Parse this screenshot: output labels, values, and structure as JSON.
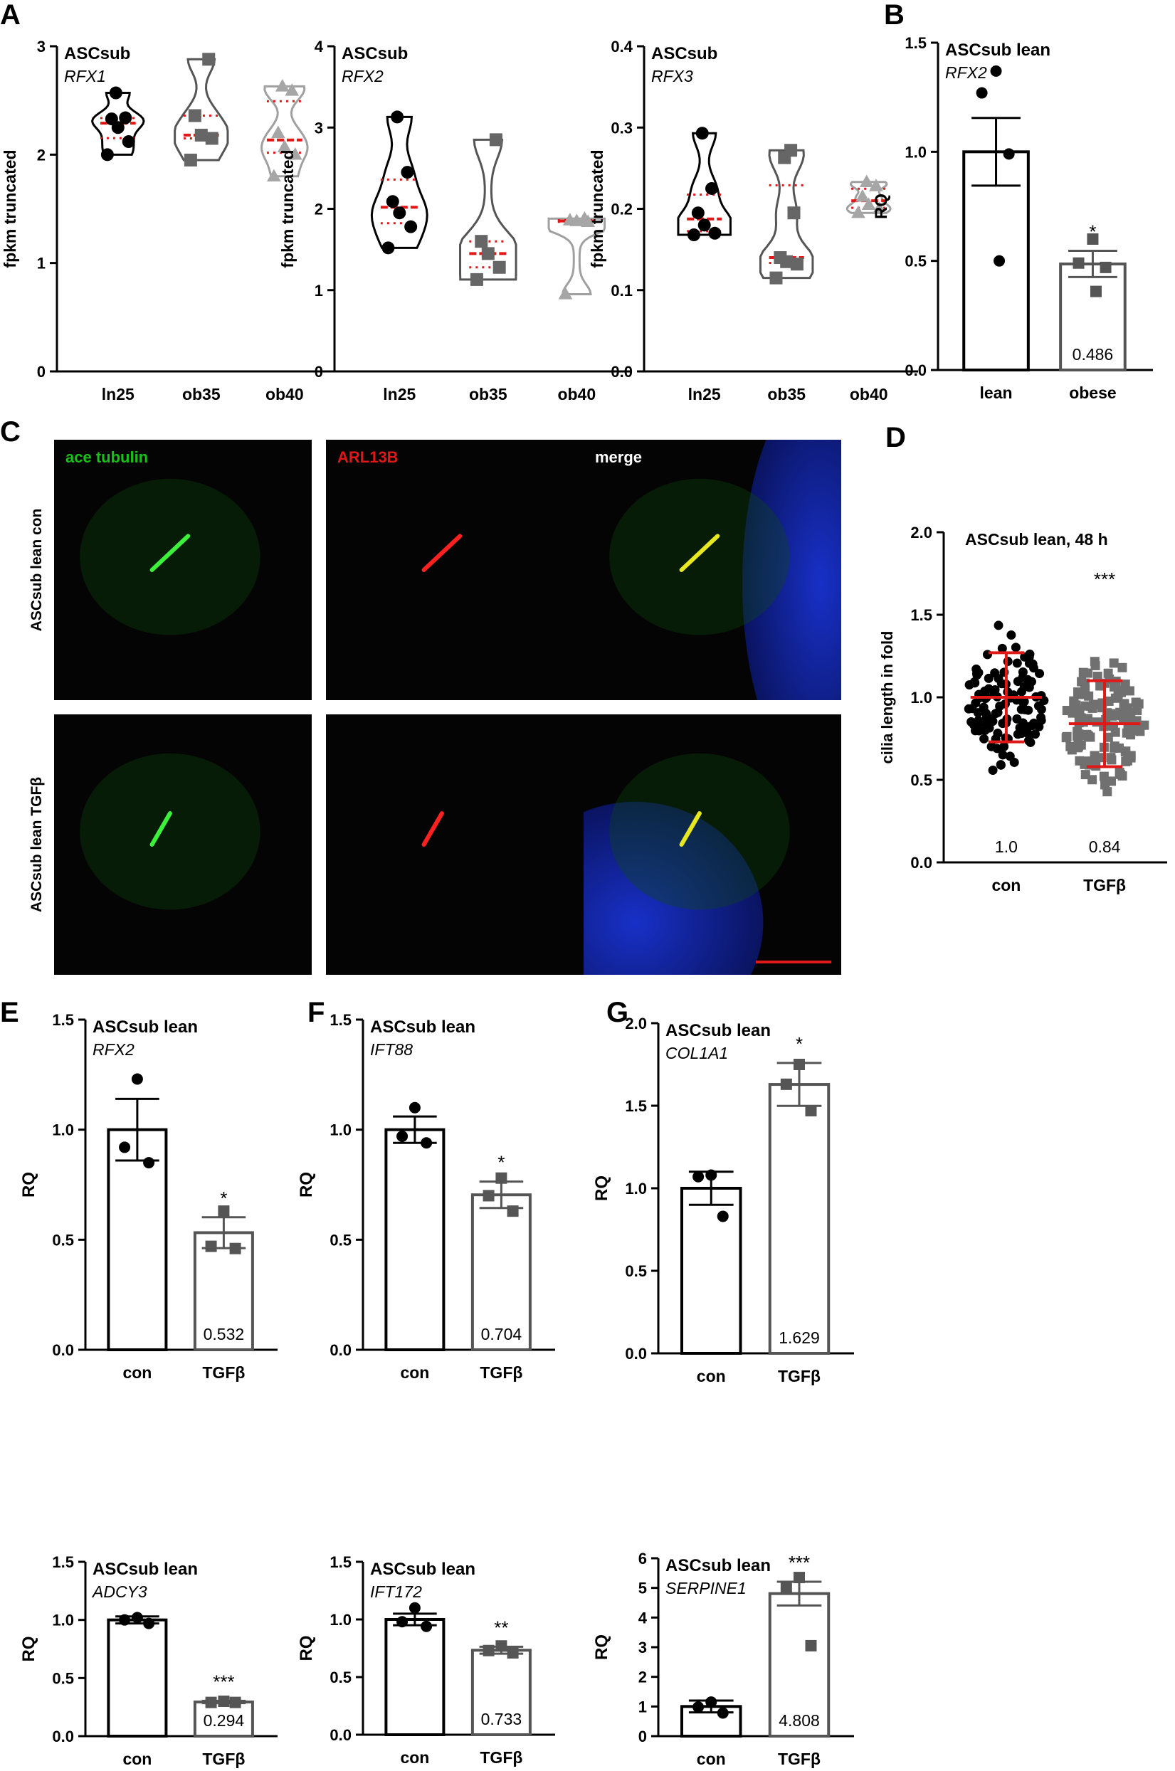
{
  "panel_letters": [
    "A",
    "B",
    "C",
    "D",
    "E",
    "F",
    "G"
  ],
  "microscopy": {
    "channels": [
      "ace tubulin",
      "ARL13B",
      "merge"
    ],
    "channel_colors": [
      "#18c018",
      "#e01818",
      "#ffffff"
    ],
    "rows": [
      "ASCsub lean con",
      "ASCsub lean TGFβ"
    ]
  },
  "chart_data": [
    {
      "id": "A1",
      "type": "violin",
      "panel": "A",
      "title": "ASCsub",
      "subtitle": "RFX1",
      "ylabel": "fpkm truncated",
      "ylim": [
        0,
        3
      ],
      "yticks": [
        "0",
        "1",
        "2",
        "3"
      ],
      "categories": [
        "ln25",
        "ob35",
        "ob40"
      ],
      "series": [
        {
          "shape": "circle",
          "color": "#000000",
          "values": [
            2.57,
            2.34,
            2.33,
            2.25,
            2.12,
            2.0
          ]
        },
        {
          "shape": "square",
          "color": "#666666",
          "values": [
            2.88,
            2.36,
            2.18,
            2.15,
            1.95
          ]
        },
        {
          "shape": "triangle",
          "color": "#a6a6a6",
          "values": [
            2.63,
            2.59,
            2.2,
            2.07,
            2.0,
            1.8
          ]
        }
      ]
    },
    {
      "id": "A2",
      "type": "violin",
      "panel": "A",
      "title": "ASCsub",
      "subtitle": "RFX2",
      "ylabel": "fpkm truncated",
      "ylim": [
        0,
        4
      ],
      "yticks": [
        "0",
        "1",
        "2",
        "3",
        "4"
      ],
      "categories": [
        "ln25",
        "ob35",
        "ob40"
      ],
      "series": [
        {
          "shape": "circle",
          "color": "#000000",
          "values": [
            3.13,
            2.45,
            2.09,
            1.95,
            1.78,
            1.52
          ]
        },
        {
          "shape": "square",
          "color": "#666666",
          "values": [
            2.85,
            1.6,
            1.45,
            1.28,
            1.13
          ]
        },
        {
          "shape": "triangle",
          "color": "#a6a6a6",
          "values": [
            1.88,
            1.86,
            1.85,
            1.84,
            0.95
          ]
        }
      ]
    },
    {
      "id": "A3",
      "type": "violin",
      "panel": "A",
      "title": "ASCsub",
      "subtitle": "RFX3",
      "ylabel": "fpkm truncated",
      "ylim": [
        0,
        0.4
      ],
      "yticks": [
        "0.0",
        "0.1",
        "0.2",
        "0.3",
        "0.4"
      ],
      "categories": [
        "ln25",
        "ob35",
        "ob40"
      ],
      "series": [
        {
          "shape": "circle",
          "color": "#000000",
          "values": [
            0.293,
            0.225,
            0.195,
            0.18,
            0.17,
            0.168
          ]
        },
        {
          "shape": "square",
          "color": "#666666",
          "values": [
            0.272,
            0.263,
            0.195,
            0.14,
            0.135,
            0.132,
            0.115
          ]
        },
        {
          "shape": "triangle",
          "color": "#a6a6a6",
          "values": [
            0.233,
            0.228,
            0.215,
            0.205,
            0.2,
            0.195
          ]
        }
      ]
    },
    {
      "id": "B",
      "type": "bar",
      "panel": "B",
      "title": "ASCsub lean",
      "subtitle": "RFX2",
      "ylabel": "RQ",
      "ylim": [
        0,
        1.5
      ],
      "yticks": [
        "0.0",
        "0.5",
        "1.0",
        "1.5"
      ],
      "categories": [
        "lean",
        "obese"
      ],
      "means": [
        1.0,
        0.486
      ],
      "sem": [
        0.155,
        0.06
      ],
      "points": [
        [
          1.37,
          1.27,
          0.99,
          0.5
        ],
        [
          0.6,
          0.49,
          0.47,
          0.36
        ]
      ],
      "bar_colors": [
        "#000000",
        "#555555"
      ],
      "value_label": "0.486",
      "sig": [
        "",
        "*"
      ]
    },
    {
      "id": "D",
      "type": "scatter",
      "panel": "D",
      "title": "ASCsub lean, 48 h",
      "ylabel": "cilia length in fold",
      "ylim": [
        0,
        2
      ],
      "yticks": [
        "0.0",
        "0.5",
        "1.0",
        "1.5",
        "2.0"
      ],
      "categories": [
        "con",
        "TGFβ"
      ],
      "means": [
        1.0,
        0.84
      ],
      "sd": [
        0.27,
        0.26
      ],
      "point_ranges": [
        [
          0.33,
          1.62
        ],
        [
          0.32,
          1.6
        ]
      ],
      "n_points": [
        120,
        130
      ],
      "point_colors": [
        "#000000",
        "#707070"
      ],
      "value_labels": [
        "1.0",
        "0.84"
      ],
      "sig": [
        "",
        "***"
      ]
    },
    {
      "id": "E1",
      "type": "bar",
      "panel": "E",
      "title": "ASCsub lean",
      "subtitle": "RFX2",
      "ylabel": "RQ",
      "ylim": [
        0,
        1.5
      ],
      "yticks": [
        "0.0",
        "0.5",
        "1.0",
        "1.5"
      ],
      "categories": [
        "con",
        "TGFβ"
      ],
      "means": [
        1.0,
        0.532
      ],
      "sem": [
        0.14,
        0.07
      ],
      "points": [
        [
          1.23,
          0.92,
          0.85
        ],
        [
          0.63,
          0.47,
          0.46
        ]
      ],
      "bar_colors": [
        "#000000",
        "#555555"
      ],
      "value_label": "0.532",
      "sig": [
        "",
        "*"
      ]
    },
    {
      "id": "F1",
      "type": "bar",
      "panel": "F",
      "title": "ASCsub lean",
      "subtitle": "IFT88",
      "ylabel": "RQ",
      "ylim": [
        0,
        1.5
      ],
      "yticks": [
        "0.0",
        "0.5",
        "1.0",
        "1.5"
      ],
      "categories": [
        "con",
        "TGFβ"
      ],
      "means": [
        1.0,
        0.704
      ],
      "sem": [
        0.06,
        0.06
      ],
      "points": [
        [
          1.1,
          0.97,
          0.94
        ],
        [
          0.78,
          0.7,
          0.63
        ]
      ],
      "bar_colors": [
        "#000000",
        "#555555"
      ],
      "value_label": "0.704",
      "sig": [
        "",
        "*"
      ]
    },
    {
      "id": "G1",
      "type": "bar",
      "panel": "G",
      "title": "ASCsub lean",
      "subtitle": "COL1A1",
      "ylabel": "RQ",
      "ylim": [
        0,
        2.0
      ],
      "yticks": [
        "0.0",
        "0.5",
        "1.0",
        "1.5",
        "2.0"
      ],
      "categories": [
        "con",
        "TGFβ"
      ],
      "means": [
        1.0,
        1.629
      ],
      "sem": [
        0.1,
        0.13
      ],
      "points": [
        [
          1.08,
          1.07,
          0.83
        ],
        [
          1.75,
          1.63,
          1.47
        ]
      ],
      "bar_colors": [
        "#000000",
        "#555555"
      ],
      "value_label": "1.629",
      "sig": [
        "",
        "*"
      ]
    },
    {
      "id": "E2",
      "type": "bar",
      "panel": "E",
      "title": "ASCsub lean",
      "subtitle": "ADCY3",
      "ylabel": "RQ",
      "ylim": [
        0,
        1.5
      ],
      "yticks": [
        "0.0",
        "0.5",
        "1.0",
        "1.5"
      ],
      "categories": [
        "con",
        "TGFβ"
      ],
      "means": [
        1.0,
        0.294
      ],
      "sem": [
        0.03,
        0.01
      ],
      "points": [
        [
          1.02,
          1.0,
          0.97
        ],
        [
          0.3,
          0.29,
          0.29
        ]
      ],
      "bar_colors": [
        "#000000",
        "#555555"
      ],
      "value_label": "0.294",
      "sig": [
        "",
        "***"
      ]
    },
    {
      "id": "F2",
      "type": "bar",
      "panel": "F",
      "title": "ASCsub lean",
      "subtitle": "IFT172",
      "ylabel": "RQ",
      "ylim": [
        0,
        1.5
      ],
      "yticks": [
        "0.0",
        "0.5",
        "1.0",
        "1.5"
      ],
      "categories": [
        "con",
        "TGFβ"
      ],
      "means": [
        1.0,
        0.733
      ],
      "sem": [
        0.05,
        0.03
      ],
      "points": [
        [
          1.1,
          0.98,
          0.94
        ],
        [
          0.77,
          0.73,
          0.71
        ]
      ],
      "bar_colors": [
        "#000000",
        "#555555"
      ],
      "value_label": "0.733",
      "sig": [
        "",
        "**"
      ]
    },
    {
      "id": "G2",
      "type": "bar",
      "panel": "G",
      "title": "ASCsub lean",
      "subtitle": "SERPINE1",
      "ylabel": "RQ",
      "ylim": [
        0,
        6
      ],
      "yticks": [
        "0",
        "1",
        "2",
        "3",
        "4",
        "5",
        "6"
      ],
      "categories": [
        "con",
        "TGFβ"
      ],
      "means": [
        1.0,
        4.808
      ],
      "sem": [
        0.2,
        0.4
      ],
      "points": [
        [
          1.15,
          0.98,
          0.78
        ],
        [
          5.35,
          5.0,
          3.05
        ]
      ],
      "bar_colors": [
        "#000000",
        "#555555"
      ],
      "value_label": "4.808",
      "sig": [
        "",
        "***"
      ]
    }
  ]
}
